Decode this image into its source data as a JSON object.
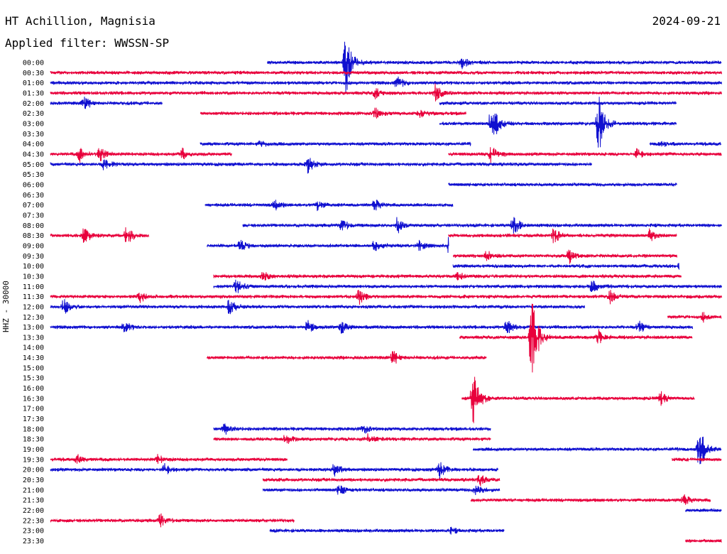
{
  "header": {
    "station": "HT Achillion, Magnisia",
    "date": "2024-09-21",
    "filter": "Applied filter: WWSSN-SP"
  },
  "chart_data": {
    "type": "line",
    "title": "HT Achillion, Magnisia",
    "subtitle": "Applied filter: WWSSN-SP",
    "ylabel": "HHZ - 30000",
    "row_labels": [
      "00:00",
      "00:30",
      "01:00",
      "01:30",
      "02:00",
      "02:30",
      "03:00",
      "03:30",
      "04:00",
      "04:30",
      "05:00",
      "05:30",
      "06:00",
      "06:30",
      "07:00",
      "07:30",
      "08:00",
      "08:30",
      "09:00",
      "09:30",
      "10:00",
      "10:30",
      "11:00",
      "11:30",
      "12:00",
      "12:30",
      "13:00",
      "13:30",
      "14:00",
      "14:30",
      "15:00",
      "15:30",
      "16:00",
      "16:30",
      "17:00",
      "17:30",
      "18:00",
      "18:30",
      "19:00",
      "19:30",
      "20:00",
      "20:30",
      "21:00",
      "21:30",
      "22:00",
      "22:30",
      "23:00",
      "23:30"
    ],
    "x_range_minutes": [
      0,
      30
    ],
    "colors": {
      "even_row": "#1010d0",
      "odd_row": "#e8003c"
    },
    "traces": [
      {
        "row": 0,
        "segments": [
          [
            9.7,
            30
          ]
        ],
        "events": [
          {
            "t": 13.2,
            "amp": 48
          },
          {
            "t": 18.4,
            "amp": 8
          }
        ]
      },
      {
        "row": 1,
        "segments": [
          [
            0,
            30
          ]
        ],
        "events": []
      },
      {
        "row": 2,
        "segments": [
          [
            0,
            30
          ]
        ],
        "events": [
          {
            "t": 15.5,
            "amp": 10
          }
        ]
      },
      {
        "row": 3,
        "segments": [
          [
            0,
            30
          ]
        ],
        "events": [
          {
            "t": 14.5,
            "amp": 8
          },
          {
            "t": 17.2,
            "amp": 12
          }
        ]
      },
      {
        "row": 4,
        "segments": [
          [
            0,
            5.0
          ],
          [
            17.4,
            28.0
          ]
        ],
        "events": [
          {
            "t": 1.5,
            "amp": 12
          }
        ]
      },
      {
        "row": 5,
        "segments": [
          [
            6.7,
            18.6
          ]
        ],
        "events": [
          {
            "t": 14.5,
            "amp": 8
          },
          {
            "t": 16.5,
            "amp": 6
          }
        ]
      },
      {
        "row": 6,
        "segments": [
          [
            17.4,
            28.0
          ]
        ],
        "events": [
          {
            "t": 19.7,
            "amp": 40
          },
          {
            "t": 24.5,
            "amp": 45
          }
        ]
      },
      {
        "row": 8,
        "segments": [
          [
            6.7,
            18.8
          ],
          [
            26.8,
            30
          ]
        ],
        "events": [
          {
            "t": 9.4,
            "amp": 6
          },
          {
            "t": 27.3,
            "amp": 4
          }
        ]
      },
      {
        "row": 9,
        "segments": [
          [
            0,
            8.1
          ],
          [
            17.8,
            30
          ]
        ],
        "events": [
          {
            "t": 1.3,
            "amp": 10
          },
          {
            "t": 2.2,
            "amp": 10
          },
          {
            "t": 5.9,
            "amp": 8
          },
          {
            "t": 19.7,
            "amp": 12
          },
          {
            "t": 26.2,
            "amp": 8
          }
        ]
      },
      {
        "row": 10,
        "segments": [
          [
            0,
            24.2
          ]
        ],
        "events": [
          {
            "t": 2.4,
            "amp": 10
          },
          {
            "t": 11.5,
            "amp": 12
          }
        ]
      },
      {
        "row": 12,
        "segments": [
          [
            17.8,
            28.0
          ]
        ],
        "events": []
      },
      {
        "row": 14,
        "segments": [
          [
            6.9,
            18.0
          ]
        ],
        "events": [
          {
            "t": 10.0,
            "amp": 8
          },
          {
            "t": 11.9,
            "amp": 8
          },
          {
            "t": 14.5,
            "amp": 8
          }
        ]
      },
      {
        "row": 16,
        "segments": [
          [
            8.6,
            30
          ]
        ],
        "events": [
          {
            "t": 13.0,
            "amp": 10
          },
          {
            "t": 15.5,
            "amp": 12
          },
          {
            "t": 20.7,
            "amp": 16
          }
        ]
      },
      {
        "row": 17,
        "segments": [
          [
            0,
            4.4
          ],
          [
            17.8,
            28.0
          ]
        ],
        "events": [
          {
            "t": 1.5,
            "amp": 12
          },
          {
            "t": 3.4,
            "amp": 14
          },
          {
            "t": 22.5,
            "amp": 12
          },
          {
            "t": 26.8,
            "amp": 10
          }
        ]
      },
      {
        "row": 18,
        "segments": [
          [
            7.0,
            17.8
          ]
        ],
        "events": [
          {
            "t": 8.5,
            "amp": 8
          },
          {
            "t": 14.5,
            "amp": 10
          },
          {
            "t": 16.5,
            "amp": 8
          },
          {
            "t": 17.8,
            "amp": 12
          }
        ]
      },
      {
        "row": 19,
        "segments": [
          [
            18.0,
            28.0
          ]
        ],
        "events": [
          {
            "t": 19.5,
            "amp": 8
          },
          {
            "t": 23.2,
            "amp": 10
          }
        ]
      },
      {
        "row": 20,
        "segments": [
          [
            18.0,
            28.1
          ]
        ],
        "events": [
          {
            "t": 28.2,
            "amp": 26
          }
        ]
      },
      {
        "row": 21,
        "segments": [
          [
            7.3,
            28.2
          ]
        ],
        "events": [
          {
            "t": 9.5,
            "amp": 8
          },
          {
            "t": 18.2,
            "amp": 6
          }
        ]
      },
      {
        "row": 22,
        "segments": [
          [
            7.3,
            30
          ]
        ],
        "events": [
          {
            "t": 8.3,
            "amp": 12
          },
          {
            "t": 24.2,
            "amp": 10
          }
        ]
      },
      {
        "row": 23,
        "segments": [
          [
            0,
            30
          ]
        ],
        "events": [
          {
            "t": 4.0,
            "amp": 8
          },
          {
            "t": 13.8,
            "amp": 10
          },
          {
            "t": 25.0,
            "amp": 10
          }
        ]
      },
      {
        "row": 24,
        "segments": [
          [
            0,
            23.9
          ]
        ],
        "events": [
          {
            "t": 0.6,
            "amp": 12
          },
          {
            "t": 8.0,
            "amp": 12
          }
        ]
      },
      {
        "row": 25,
        "segments": [
          [
            27.6,
            30
          ]
        ],
        "events": [
          {
            "t": 29.2,
            "amp": 6
          }
        ]
      },
      {
        "row": 26,
        "segments": [
          [
            0,
            28.7
          ]
        ],
        "events": [
          {
            "t": 3.3,
            "amp": 8
          },
          {
            "t": 11.5,
            "amp": 10
          },
          {
            "t": 13.0,
            "amp": 10
          },
          {
            "t": 20.4,
            "amp": 12
          },
          {
            "t": 26.3,
            "amp": 8
          }
        ]
      },
      {
        "row": 27,
        "segments": [
          [
            18.3,
            28.7
          ]
        ],
        "events": [
          {
            "t": 21.5,
            "amp": 75
          },
          {
            "t": 24.5,
            "amp": 10
          }
        ]
      },
      {
        "row": 29,
        "segments": [
          [
            7.0,
            19.5
          ]
        ],
        "events": [
          {
            "t": 15.3,
            "amp": 12
          }
        ]
      },
      {
        "row": 33,
        "segments": [
          [
            18.4,
            28.8
          ]
        ],
        "events": [
          {
            "t": 18.9,
            "amp": 44
          },
          {
            "t": 27.3,
            "amp": 10
          }
        ]
      },
      {
        "row": 36,
        "segments": [
          [
            7.3,
            19.7
          ]
        ],
        "events": [
          {
            "t": 7.8,
            "amp": 8
          },
          {
            "t": 14.0,
            "amp": 6
          }
        ]
      },
      {
        "row": 37,
        "segments": [
          [
            7.3,
            19.7
          ]
        ],
        "events": [
          {
            "t": 10.5,
            "amp": 8
          },
          {
            "t": 14.2,
            "amp": 8
          }
        ]
      },
      {
        "row": 38,
        "segments": [
          [
            18.9,
            30
          ]
        ],
        "events": [
          {
            "t": 29.0,
            "amp": 36
          }
        ]
      },
      {
        "row": 39,
        "segments": [
          [
            0,
            10.6
          ],
          [
            27.8,
            30
          ]
        ],
        "events": [
          {
            "t": 1.2,
            "amp": 6
          },
          {
            "t": 4.8,
            "amp": 6
          }
        ]
      },
      {
        "row": 40,
        "segments": [
          [
            0,
            20.0
          ]
        ],
        "events": [
          {
            "t": 5.1,
            "amp": 8
          },
          {
            "t": 12.7,
            "amp": 10
          },
          {
            "t": 17.4,
            "amp": 12
          }
        ]
      },
      {
        "row": 41,
        "segments": [
          [
            9.5,
            20.1
          ]
        ],
        "events": [
          {
            "t": 19.2,
            "amp": 8
          }
        ]
      },
      {
        "row": 42,
        "segments": [
          [
            9.5,
            20.1
          ]
        ],
        "events": [
          {
            "t": 12.9,
            "amp": 8
          },
          {
            "t": 19.0,
            "amp": 8
          }
        ]
      },
      {
        "row": 43,
        "segments": [
          [
            18.8,
            29.5
          ]
        ],
        "events": [
          {
            "t": 28.3,
            "amp": 8
          }
        ]
      },
      {
        "row": 44,
        "segments": [
          [
            28.4,
            30
          ]
        ],
        "events": []
      },
      {
        "row": 45,
        "segments": [
          [
            0,
            10.9
          ]
        ],
        "events": [
          {
            "t": 4.9,
            "amp": 10
          }
        ]
      },
      {
        "row": 46,
        "segments": [
          [
            9.8,
            20.3
          ]
        ],
        "events": [
          {
            "t": 17.9,
            "amp": 4
          }
        ]
      },
      {
        "row": 47,
        "segments": [
          [
            28.4,
            30
          ]
        ],
        "events": []
      }
    ]
  }
}
